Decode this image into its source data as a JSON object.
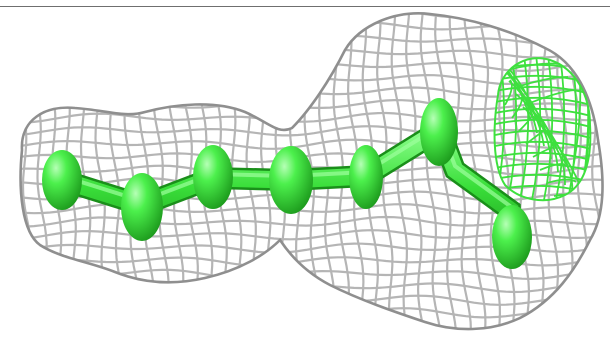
{
  "scene": {
    "subject": "electron-density-mesh",
    "background_color": "#ffffff",
    "mesh_color": "#b8b8b8",
    "mesh_shadow_color": "#8c8c8c",
    "ligand_color": "#3ee03e",
    "ligand_highlight_color": "#aaffaa",
    "ligand_shadow_color": "#1fa81f",
    "difference_mesh_color": "#3ee03e",
    "frame_line_color": "#6f6f6f"
  }
}
